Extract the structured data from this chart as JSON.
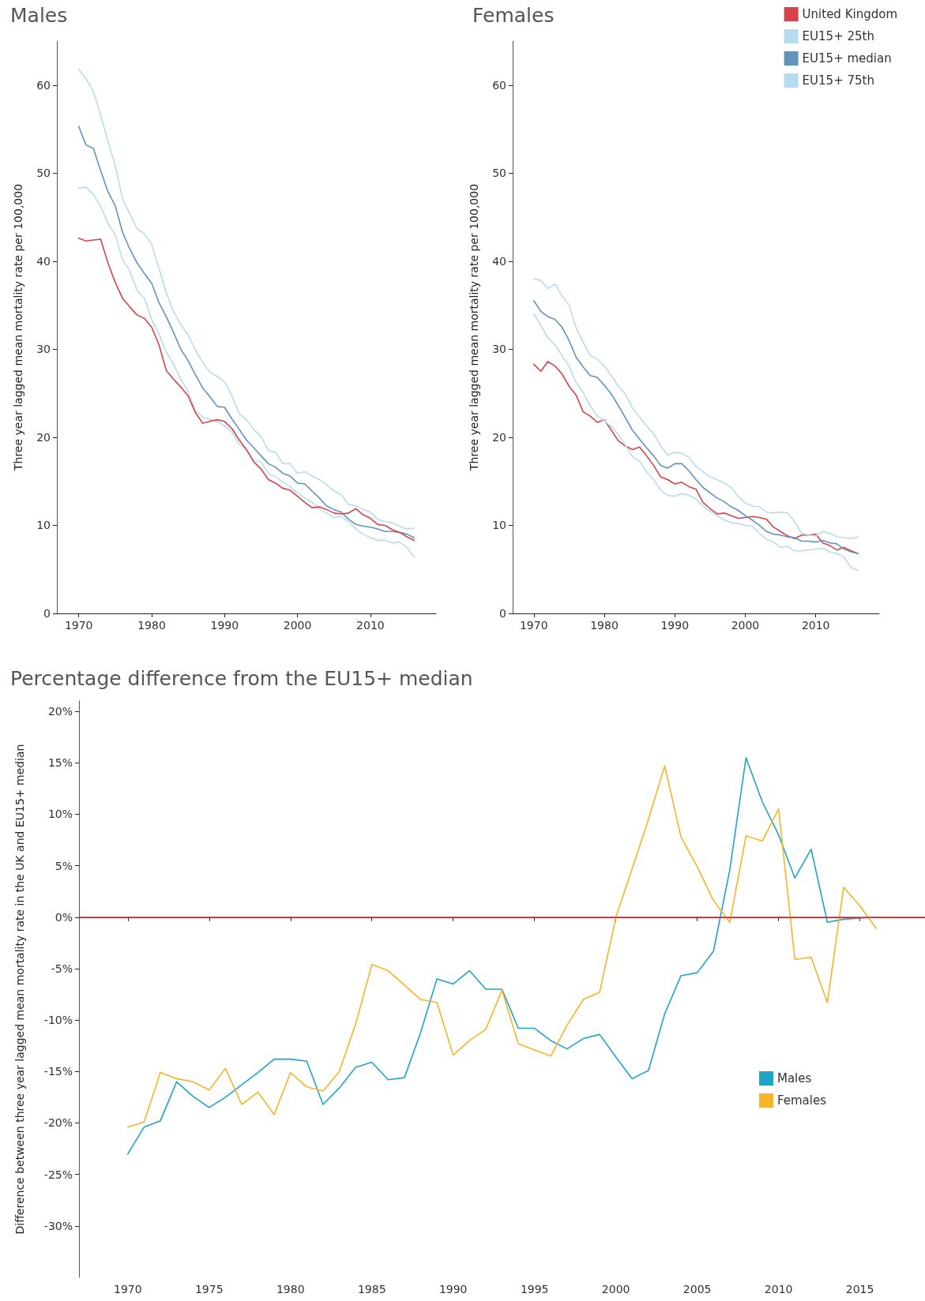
{
  "chart_data": [
    {
      "type": "line",
      "title": "Males",
      "ylabel": "Three year lagged mean mortality rate per 100,000",
      "xlim": [
        1967,
        2019
      ],
      "ylim": [
        0,
        65
      ],
      "xticks": [
        1970,
        1980,
        1990,
        2000,
        2010
      ],
      "yticks": [
        0,
        10,
        20,
        30,
        40,
        50,
        60
      ],
      "grid": false,
      "legend": false,
      "marker": "none",
      "line_style": "solid",
      "x": [
        1970,
        1971,
        1972,
        1973,
        1974,
        1975,
        1976,
        1977,
        1978,
        1979,
        1980,
        1981,
        1982,
        1983,
        1984,
        1985,
        1986,
        1987,
        1988,
        1989,
        1990,
        1991,
        1992,
        1993,
        1994,
        1995,
        1996,
        1997,
        1998,
        1999,
        2000,
        2001,
        2002,
        2003,
        2004,
        2005,
        2006,
        2007,
        2008,
        2009,
        2010,
        2011,
        2012,
        2013,
        2014,
        2015,
        2016
      ],
      "series": [
        {
          "color": "#b7dcef",
          "values": [
            48.3,
            48.4,
            47.6,
            46.2,
            44.3,
            43.0,
            40.2,
            38.9,
            36.7,
            35.8,
            33.4,
            31.7,
            29.7,
            28.3,
            26.6,
            25.2,
            23.0,
            22.3,
            22.0,
            21.8,
            21.3,
            20.6,
            19.2,
            18.6,
            17.4,
            17.2,
            15.9,
            15.5,
            14.9,
            14.4,
            13.7,
            13.1,
            12.6,
            11.9,
            11.4,
            10.9,
            11.0,
            10.4,
            9.6,
            9.0,
            8.6,
            8.3,
            8.3,
            8.0,
            8.1,
            7.5,
            6.4
          ]
        },
        {
          "color": "#b7dcef",
          "values": [
            61.8,
            60.7,
            59.3,
            56.6,
            53.6,
            50.9,
            47.1,
            45.4,
            43.7,
            43.1,
            41.9,
            39.2,
            36.4,
            34.3,
            32.8,
            31.6,
            29.9,
            28.5,
            27.4,
            26.9,
            26.3,
            24.7,
            22.7,
            22.0,
            20.9,
            20.1,
            18.5,
            18.3,
            17.0,
            17.0,
            15.9,
            16.1,
            15.6,
            15.2,
            14.6,
            13.9,
            13.5,
            12.4,
            12.2,
            11.8,
            11.5,
            10.7,
            10.4,
            10.3,
            9.9,
            9.6,
            9.7
          ]
        },
        {
          "color": "#6193bf",
          "values": [
            55.3,
            53.2,
            52.8,
            50.3,
            47.9,
            46.3,
            43.3,
            41.4,
            39.8,
            38.6,
            37.5,
            35.3,
            33.7,
            31.9,
            30.0,
            28.7,
            27.1,
            25.6,
            24.6,
            23.5,
            23.4,
            22.1,
            20.9,
            19.7,
            18.8,
            17.9,
            17.0,
            16.6,
            15.9,
            15.6,
            14.8,
            14.7,
            13.9,
            13.1,
            12.2,
            11.8,
            11.5,
            10.7,
            10.1,
            9.9,
            9.8,
            9.6,
            9.3,
            9.3,
            9.2,
            9.0,
            8.6
          ]
        },
        {
          "color": "#d4444a",
          "values": [
            42.6,
            42.3,
            42.4,
            42.5,
            39.8,
            37.6,
            35.8,
            34.8,
            33.9,
            33.5,
            32.5,
            30.5,
            27.6,
            26.6,
            25.7,
            24.7,
            22.8,
            21.6,
            21.8,
            22.0,
            21.8,
            21.0,
            19.7,
            18.6,
            17.2,
            16.4,
            15.2,
            14.8,
            14.2,
            14.0,
            13.3,
            12.6,
            12.0,
            12.1,
            11.8,
            11.4,
            11.3,
            11.4,
            11.9,
            11.2,
            10.8,
            10.1,
            10.0,
            9.5,
            9.2,
            8.7,
            8.3
          ]
        }
      ]
    },
    {
      "type": "line",
      "title": "Females",
      "ylabel": "Three year lagged mean mortality rate per 100,000",
      "xlim": [
        1967,
        2019
      ],
      "ylim": [
        0,
        65
      ],
      "xticks": [
        1970,
        1980,
        1990,
        2000,
        2010
      ],
      "yticks": [
        0,
        10,
        20,
        30,
        40,
        50,
        60
      ],
      "grid": false,
      "legend": "top right",
      "marker": "none",
      "line_style": "solid",
      "x": [
        1970,
        1971,
        1972,
        1973,
        1974,
        1975,
        1976,
        1977,
        1978,
        1979,
        1980,
        1981,
        1982,
        1983,
        1984,
        1985,
        1986,
        1987,
        1988,
        1989,
        1990,
        1991,
        1992,
        1993,
        1994,
        1995,
        1996,
        1997,
        1998,
        1999,
        2000,
        2001,
        2002,
        2003,
        2004,
        2005,
        2006,
        2007,
        2008,
        2009,
        2010,
        2011,
        2012,
        2013,
        2014,
        2015,
        2016
      ],
      "series": [
        {
          "name": "United Kingdom",
          "color": "#d4444a",
          "values": [
            28.3,
            27.5,
            28.6,
            28.1,
            27.2,
            25.8,
            24.8,
            22.9,
            22.4,
            21.7,
            22.0,
            20.8,
            19.6,
            19.0,
            18.6,
            18.9,
            17.9,
            16.8,
            15.5,
            15.2,
            14.7,
            14.9,
            14.4,
            14.1,
            12.6,
            11.9,
            11.3,
            11.4,
            11.1,
            10.8,
            10.9,
            11.0,
            10.9,
            10.7,
            9.8,
            9.3,
            8.8,
            8.5,
            8.9,
            8.9,
            9.0,
            8.0,
            7.7,
            7.2,
            7.5,
            7.1,
            6.8
          ]
        },
        {
          "name": "EU15+ 25th",
          "color": "#b7dcef",
          "values": [
            34.0,
            32.7,
            31.3,
            30.5,
            29.3,
            28.1,
            26.2,
            25.1,
            23.6,
            22.4,
            21.9,
            21.2,
            20.3,
            19.1,
            17.8,
            17.3,
            16.1,
            15.2,
            14.0,
            13.4,
            13.3,
            13.6,
            13.4,
            13.0,
            12.2,
            11.6,
            11.1,
            10.6,
            10.3,
            10.2,
            10.0,
            9.9,
            9.1,
            8.4,
            8.1,
            7.5,
            7.6,
            7.1,
            7.1,
            7.2,
            7.3,
            7.4,
            7.0,
            6.8,
            6.4,
            5.2,
            4.9
          ]
        },
        {
          "name": "EU15+ median",
          "color": "#6193bf",
          "values": [
            35.5,
            34.3,
            33.7,
            33.4,
            32.5,
            31.0,
            29.1,
            28.0,
            27.0,
            26.8,
            25.9,
            24.9,
            23.6,
            22.2,
            20.8,
            19.8,
            18.8,
            17.9,
            16.8,
            16.5,
            17.0,
            17.0,
            16.2,
            15.2,
            14.3,
            13.7,
            13.1,
            12.7,
            12.1,
            11.7,
            11.1,
            10.6,
            10.0,
            9.3,
            9.0,
            8.9,
            8.7,
            8.6,
            8.2,
            8.2,
            8.1,
            8.3,
            8.0,
            7.9,
            7.3,
            7.0,
            6.8
          ]
        },
        {
          "name": "EU15+ 75th",
          "color": "#b7dcef",
          "values": [
            38.0,
            37.8,
            36.9,
            37.4,
            36.1,
            35.0,
            32.4,
            30.8,
            29.3,
            28.9,
            28.1,
            27.0,
            25.8,
            24.9,
            23.3,
            22.3,
            21.3,
            20.4,
            19.0,
            18.0,
            18.3,
            18.2,
            17.7,
            16.7,
            16.1,
            15.5,
            15.2,
            14.8,
            14.3,
            13.3,
            12.5,
            12.2,
            12.1,
            11.5,
            11.4,
            11.5,
            11.4,
            10.4,
            9.1,
            8.9,
            8.8,
            9.3,
            9.1,
            8.7,
            8.6,
            8.5,
            8.7
          ]
        }
      ]
    },
    {
      "type": "line",
      "title": "Percentage difference from the EU15+ median",
      "ylabel": "Difference between three year lagged mean mortality rate in the UK and EU15+ median",
      "xlim": [
        1967,
        2019
      ],
      "ylim": [
        -35,
        21
      ],
      "xticks": [
        1970,
        1975,
        1980,
        1985,
        1990,
        1995,
        2000,
        2005,
        2010,
        2015
      ],
      "yticks": [
        {
          "value": -30,
          "label": "-30%"
        },
        {
          "value": -25,
          "label": "-25%"
        },
        {
          "value": -20,
          "label": "-20%"
        },
        {
          "value": -15,
          "label": "-15%"
        },
        {
          "value": -10,
          "label": "-10%"
        },
        {
          "value": -5,
          "label": "-5%"
        },
        {
          "value": 0,
          "label": "0%"
        },
        {
          "value": 5,
          "label": "5%"
        },
        {
          "value": 10,
          "label": "10%"
        },
        {
          "value": 15,
          "label": "15%"
        },
        {
          "value": 20,
          "label": "20%"
        }
      ],
      "grid": false,
      "legend": "bottom right",
      "marker": "none",
      "line_style": "solid",
      "ref_lines": [
        {
          "axis": "y",
          "value": 0,
          "color": "#e8262b"
        }
      ],
      "x": [
        1970,
        1971,
        1972,
        1973,
        1974,
        1975,
        1976,
        1977,
        1978,
        1979,
        1980,
        1981,
        1982,
        1983,
        1984,
        1985,
        1986,
        1987,
        1988,
        1989,
        1990,
        1991,
        1992,
        1993,
        1994,
        1995,
        1996,
        1997,
        1998,
        1999,
        2000,
        2001,
        2002,
        2003,
        2004,
        2005,
        2006,
        2007,
        2008,
        2009,
        2010,
        2011,
        2012,
        2013,
        2014,
        2015,
        2016
      ],
      "series": [
        {
          "name": "Males",
          "color": "#1fa4c8",
          "values": [
            -23.0,
            -20.4,
            -19.8,
            -16.0,
            -17.4,
            -18.5,
            -17.5,
            -16.3,
            -15.1,
            -13.8,
            -13.8,
            -14.0,
            -18.2,
            -16.6,
            -14.6,
            -14.1,
            -15.8,
            -15.6,
            -11.2,
            -6.0,
            -6.5,
            -5.2,
            -7.0,
            -7.0,
            -10.8,
            -10.8,
            -12.0,
            -12.8,
            -11.8,
            -11.4,
            -13.6,
            -15.7,
            -14.9,
            -9.4,
            -5.7,
            -5.4,
            -3.3,
            4.6,
            15.5,
            11.2,
            8.0,
            3.8,
            6.6,
            -0.5,
            -0.2,
            -0.1,
            0.0
          ]
        },
        {
          "name": "Females",
          "color": "#f5b526",
          "values": [
            -20.4,
            -19.9,
            -15.1,
            -15.7,
            -16.0,
            -16.8,
            -14.7,
            -18.2,
            -17.0,
            -19.2,
            -15.1,
            -16.5,
            -16.9,
            -15.0,
            -10.4,
            -4.6,
            -5.2,
            -6.6,
            -8.0,
            -8.3,
            -13.4,
            -12.0,
            -10.9,
            -7.1,
            -12.3,
            -12.9,
            -13.5,
            -10.5,
            -8.0,
            -7.3,
            0.0,
            4.7,
            9.5,
            14.7,
            7.8,
            4.9,
            1.6,
            -0.5,
            7.9,
            7.4,
            10.5,
            -4.1,
            -3.9,
            -8.3,
            2.9,
            1.1,
            -1.1
          ]
        }
      ]
    }
  ]
}
